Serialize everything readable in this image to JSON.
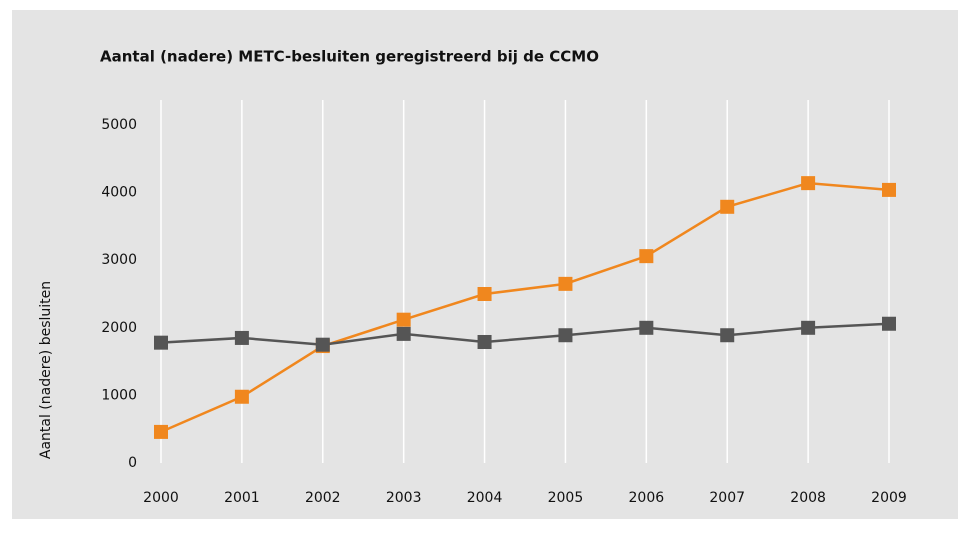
{
  "chart_data": {
    "type": "line",
    "title": "Aantal (nadere) METC-besluiten geregistreerd bij de CCMO",
    "y_label": "Aantal (nadere) besluiten",
    "categories": [
      "2000",
      "2001",
      "2002",
      "2003",
      "2004",
      "2005",
      "2006",
      "2007",
      "2008",
      "2009"
    ],
    "series": [
      {
        "color": "#f0871e",
        "values": [
          460,
          980,
          1730,
          2120,
          2500,
          2650,
          3060,
          3790,
          4140,
          4040
        ]
      },
      {
        "color": "#555555",
        "values": [
          1780,
          1850,
          1750,
          1910,
          1790,
          1890,
          2000,
          1890,
          2000,
          2060
        ]
      }
    ],
    "ylim": [
      0,
      5000
    ],
    "yticks": [
      0,
      1000,
      2000,
      3000,
      4000,
      5000
    ],
    "grid": true
  }
}
